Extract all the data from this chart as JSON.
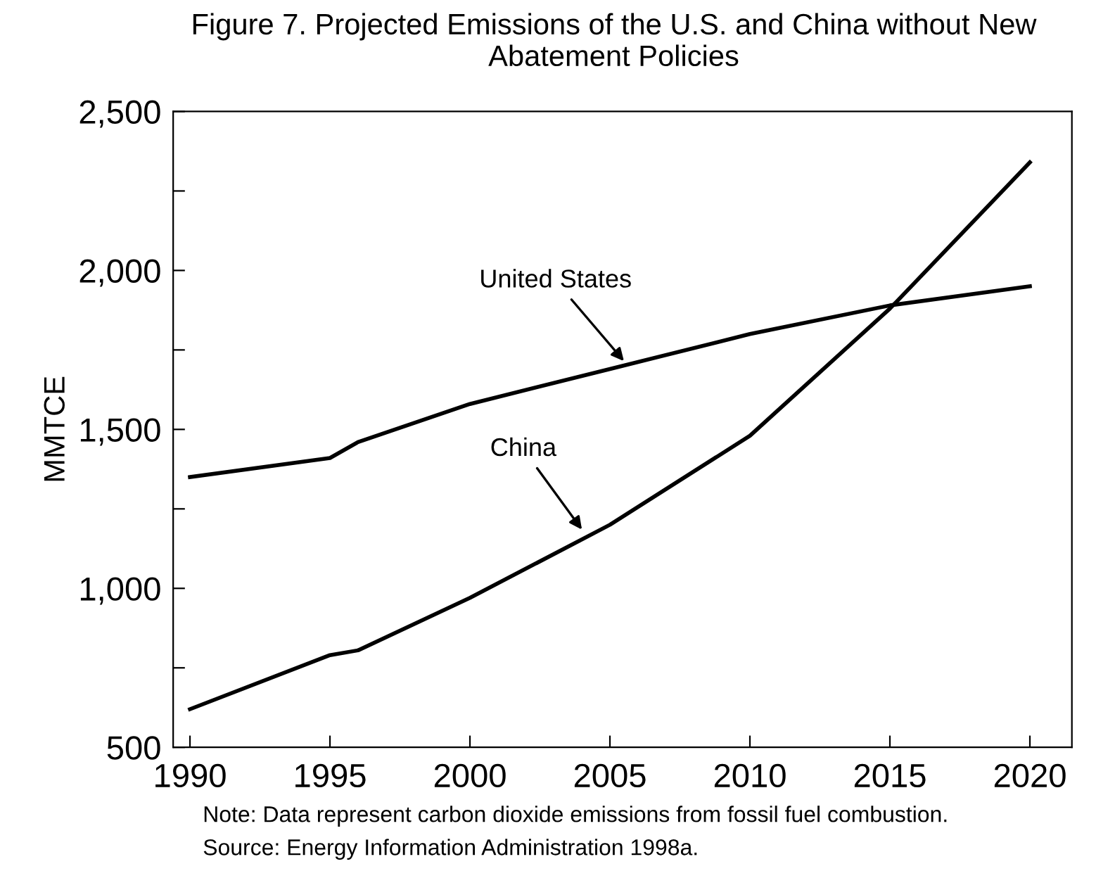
{
  "chart_data": {
    "type": "line",
    "title": "Figure 7. Projected Emissions of the U.S. and China without New Abatement Policies",
    "ylabel": "MMTCE",
    "series": [
      {
        "color": "#000000",
        "x": [
          1990,
          1995,
          1996,
          2000,
          2005,
          2010,
          2015,
          2020
        ],
        "values": [
          1350,
          1410,
          1460,
          1580,
          1690,
          1800,
          1890,
          1950
        ]
      },
      {
        "color": "#000000",
        "x": [
          1990,
          1995,
          1996,
          2000,
          2005,
          2010,
          2015,
          2020
        ],
        "values": [
          620,
          790,
          805,
          970,
          1200,
          1480,
          1880,
          2340
        ]
      }
    ],
    "xlim": [
      1989.4,
      2021.5
    ],
    "xticks": [
      1990,
      1995,
      2000,
      2005,
      2010,
      2015,
      2020
    ],
    "ylim": [
      500,
      2500
    ],
    "yticks": [
      {
        "value": 500,
        "label": "500"
      },
      {
        "value": 750,
        "label": null
      },
      {
        "value": 1000,
        "label": "1,000"
      },
      {
        "value": 1250,
        "label": null
      },
      {
        "value": 1500,
        "label": "1,500"
      },
      {
        "value": 1750,
        "label": null
      },
      {
        "value": 2000,
        "label": "2,000"
      },
      {
        "value": 2250,
        "label": null
      },
      {
        "value": 2500,
        "label": "2,500"
      }
    ],
    "grid": false,
    "legend": false,
    "marker": "none",
    "line_style": "solid",
    "annotations": [
      {
        "text": "United States",
        "x": 2005.5,
        "y": 1715
      },
      {
        "text": "China",
        "x": 2004,
        "y": 1185
      },
      "Note: Data represent carbon dioxide emissions from fossil fuel combustion.",
      "Source: Energy Information Administration 1998a."
    ]
  }
}
